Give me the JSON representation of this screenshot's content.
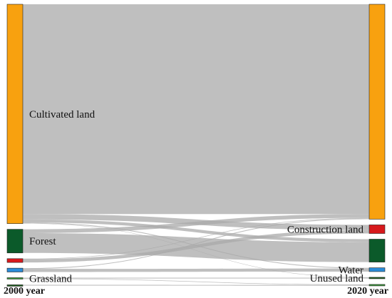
{
  "chart_data": {
    "type": "sankey",
    "left_axis_label": "2000 year",
    "right_axis_label": "2020 year",
    "left_nodes": [
      {
        "id": "L_cult",
        "label": "Cultivated land",
        "color": "#f8a10f",
        "show_label": true
      },
      {
        "id": "L_forest",
        "label": "Forest",
        "color": "#0b5a2a",
        "show_label": true
      },
      {
        "id": "L_constr",
        "label": "Construction land",
        "color": "#d7191c",
        "show_label": false
      },
      {
        "id": "L_water",
        "label": "Water",
        "color": "#2b8cd8",
        "show_label": false
      },
      {
        "id": "L_grass",
        "label": "Grassland",
        "color": "#3b9a3b",
        "show_label": true
      },
      {
        "id": "L_unused",
        "label": "Unused land",
        "color": "#1f5e1f",
        "show_label": false
      }
    ],
    "right_nodes": [
      {
        "id": "R_cult",
        "label": "Cultivated land",
        "color": "#f8a10f",
        "show_label": false
      },
      {
        "id": "R_constr",
        "label": "Construction land",
        "color": "#d7191c",
        "show_label": true
      },
      {
        "id": "R_forest",
        "label": "Forest",
        "color": "#0b5a2a",
        "show_label": false
      },
      {
        "id": "R_water",
        "label": "Water",
        "color": "#2b8cd8",
        "show_label": true
      },
      {
        "id": "R_unused",
        "label": "Unused land",
        "color": "#1f5e1f",
        "show_label": true
      },
      {
        "id": "R_grass",
        "label": "Grassland",
        "color": "#3b9a3b",
        "show_label": false
      }
    ],
    "flows": [
      {
        "source": "L_cult",
        "target": "R_cult",
        "value": 275
      },
      {
        "source": "L_cult",
        "target": "R_constr",
        "value": 7
      },
      {
        "source": "L_cult",
        "target": "R_forest",
        "value": 4
      },
      {
        "source": "L_cult",
        "target": "R_water",
        "value": 1
      },
      {
        "source": "L_cult",
        "target": "R_unused",
        "value": 0.5
      },
      {
        "source": "L_forest",
        "target": "R_cult",
        "value": 5
      },
      {
        "source": "L_forest",
        "target": "R_forest",
        "value": 26
      },
      {
        "source": "L_constr",
        "target": "R_cult",
        "value": 0.7
      },
      {
        "source": "L_constr",
        "target": "R_constr",
        "value": 4.3
      },
      {
        "source": "L_water",
        "target": "R_water",
        "value": 4
      },
      {
        "source": "L_water",
        "target": "R_cult",
        "value": 1
      },
      {
        "source": "L_grass",
        "target": "R_unused",
        "value": 1
      },
      {
        "source": "L_grass",
        "target": "R_grass",
        "value": 0.7
      },
      {
        "source": "L_unused",
        "target": "R_grass",
        "value": 1
      }
    ],
    "link_color": "#a9a9a9"
  }
}
